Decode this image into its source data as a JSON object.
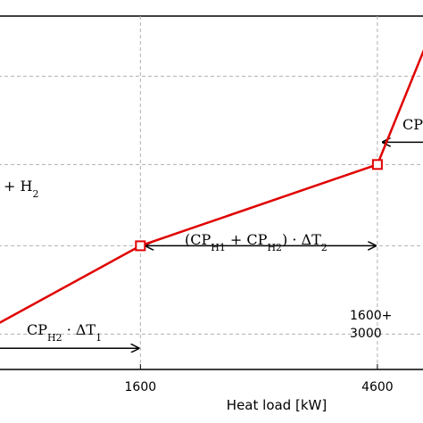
{
  "chart_data": {
    "type": "line",
    "title": "",
    "xlabel": "Heat load [kW]",
    "ylabel": "",
    "xlim": [
      -200,
      5200
    ],
    "ylim": [
      0,
      1.0
    ],
    "x_ticks": [
      {
        "value": 1600,
        "label": "1600"
      },
      {
        "value": 4600,
        "label": "4600"
      }
    ],
    "y_gridlines": [
      0.1,
      0.35,
      0.58,
      0.83
    ],
    "x_gridlines": [
      1600,
      4600
    ],
    "grid": true,
    "series": [
      {
        "name": "",
        "color": "#e00000",
        "points": [
          {
            "x": -200,
            "y": 0.13
          },
          {
            "x": 1600,
            "y": 0.35
          },
          {
            "x": 4600,
            "y": 0.58
          },
          {
            "x": 5200,
            "y": 0.91
          }
        ],
        "markers": [
          {
            "x": 1600,
            "y": 0.35
          },
          {
            "x": 4600,
            "y": 0.58
          }
        ]
      }
    ],
    "annotations": [
      {
        "text": "CP",
        "sub": "H2",
        "after": " · ΔT",
        "sub2": "1"
      },
      {
        "text": "(CP",
        "sub": "H1",
        "mid": " + CP",
        "sub_mid": "H2",
        "after": ") · ΔT",
        "sub2": "2"
      },
      {
        "text": "CP",
        "sub": "",
        "after": "",
        "sub2": ""
      },
      {
        "text": "+ H",
        "sub": "2",
        "after": "",
        "sub2": ""
      },
      {
        "text": "1600+"
      },
      {
        "text": "3000"
      }
    ]
  }
}
